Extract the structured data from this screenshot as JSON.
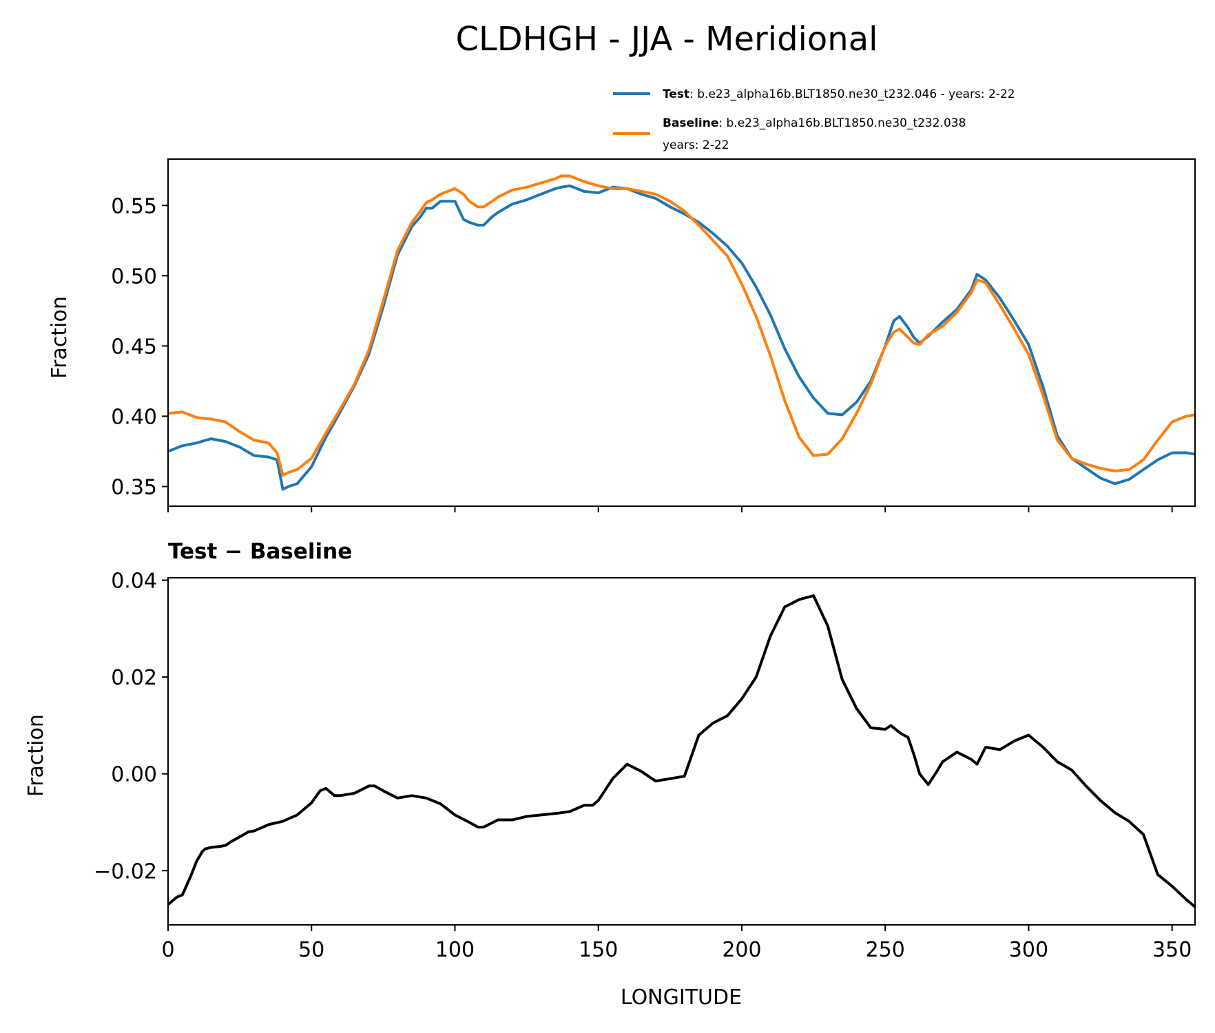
{
  "figure": {
    "title": "CLDHGH - JJA - Meridional"
  },
  "colors": {
    "test": "#1f77b4",
    "baseline": "#ff7f0e",
    "difference": "#000000",
    "axes": "#000000"
  },
  "legend": {
    "test_name": "Test",
    "test_desc": ": b.e23_alpha16b.BLT1850.ne30_t232.046 - years: 2-22",
    "baseline_name": "Baseline",
    "baseline_desc": ": b.e23_alpha16b.BLT1850.ne30_t232.038",
    "baseline_desc2": "years: 2-22"
  },
  "chart_data": [
    {
      "type": "line",
      "title": "",
      "xlabel": "",
      "ylabel": "Fraction",
      "xlim": [
        0,
        358
      ],
      "ylim": [
        0.336,
        0.583
      ],
      "yticks": [
        0.35,
        0.4,
        0.45,
        0.5,
        0.55
      ],
      "ytick_labels": [
        "0.35",
        "0.40",
        "0.45",
        "0.50",
        "0.55"
      ],
      "xticks": [
        0,
        50,
        100,
        150,
        200,
        250,
        300,
        350
      ],
      "legend": "top-right (above axes)",
      "series": [
        {
          "name": "Test",
          "x": [
            0,
            5,
            10,
            15,
            20,
            25,
            30,
            35,
            38,
            40,
            42,
            45,
            50,
            55,
            60,
            65,
            70,
            75,
            80,
            85,
            88,
            90,
            92,
            95,
            100,
            103,
            105,
            108,
            110,
            113,
            115,
            120,
            125,
            130,
            135,
            137,
            140,
            145,
            150,
            155,
            160,
            165,
            170,
            175,
            180,
            185,
            190,
            195,
            200,
            205,
            210,
            215,
            220,
            225,
            230,
            235,
            240,
            245,
            250,
            253,
            255,
            258,
            260,
            262,
            265,
            270,
            275,
            280,
            282,
            285,
            290,
            295,
            300,
            305,
            310,
            315,
            320,
            325,
            330,
            335,
            340,
            345,
            350,
            355,
            358
          ],
          "y": [
            0.375,
            0.379,
            0.381,
            0.384,
            0.382,
            0.378,
            0.372,
            0.371,
            0.369,
            0.348,
            0.35,
            0.352,
            0.364,
            0.385,
            0.403,
            0.422,
            0.444,
            0.478,
            0.515,
            0.535,
            0.542,
            0.548,
            0.548,
            0.553,
            0.553,
            0.54,
            0.538,
            0.536,
            0.536,
            0.542,
            0.545,
            0.551,
            0.554,
            0.558,
            0.562,
            0.563,
            0.564,
            0.56,
            0.559,
            0.563,
            0.562,
            0.558,
            0.555,
            0.549,
            0.544,
            0.538,
            0.53,
            0.521,
            0.509,
            0.492,
            0.472,
            0.448,
            0.428,
            0.413,
            0.402,
            0.401,
            0.41,
            0.425,
            0.45,
            0.468,
            0.471,
            0.463,
            0.456,
            0.452,
            0.457,
            0.467,
            0.476,
            0.49,
            0.501,
            0.497,
            0.484,
            0.468,
            0.451,
            0.421,
            0.386,
            0.37,
            0.363,
            0.356,
            0.352,
            0.355,
            0.362,
            0.369,
            0.374,
            0.374,
            0.373
          ]
        },
        {
          "name": "Baseline",
          "x": [
            0,
            5,
            10,
            15,
            20,
            25,
            30,
            35,
            38,
            40,
            42,
            45,
            50,
            55,
            60,
            65,
            70,
            75,
            80,
            85,
            88,
            90,
            92,
            95,
            100,
            103,
            105,
            108,
            110,
            113,
            115,
            120,
            125,
            130,
            135,
            137,
            140,
            145,
            150,
            155,
            160,
            165,
            170,
            175,
            180,
            185,
            190,
            195,
            200,
            205,
            210,
            215,
            220,
            225,
            230,
            235,
            240,
            245,
            250,
            253,
            255,
            258,
            260,
            262,
            265,
            270,
            275,
            280,
            282,
            285,
            290,
            295,
            300,
            305,
            310,
            315,
            320,
            325,
            330,
            335,
            340,
            345,
            350,
            355,
            358
          ],
          "y": [
            0.402,
            0.403,
            0.399,
            0.398,
            0.396,
            0.389,
            0.383,
            0.381,
            0.374,
            0.358,
            0.36,
            0.362,
            0.37,
            0.388,
            0.405,
            0.423,
            0.447,
            0.482,
            0.518,
            0.538,
            0.546,
            0.552,
            0.554,
            0.558,
            0.562,
            0.558,
            0.553,
            0.549,
            0.549,
            0.553,
            0.556,
            0.561,
            0.563,
            0.566,
            0.569,
            0.571,
            0.571,
            0.567,
            0.564,
            0.562,
            0.562,
            0.56,
            0.558,
            0.553,
            0.546,
            0.536,
            0.525,
            0.514,
            0.494,
            0.471,
            0.443,
            0.411,
            0.385,
            0.372,
            0.373,
            0.384,
            0.402,
            0.423,
            0.45,
            0.46,
            0.462,
            0.456,
            0.452,
            0.451,
            0.458,
            0.464,
            0.474,
            0.488,
            0.497,
            0.495,
            0.479,
            0.462,
            0.444,
            0.415,
            0.383,
            0.37,
            0.366,
            0.363,
            0.361,
            0.362,
            0.369,
            0.383,
            0.396,
            0.4,
            0.401
          ]
        }
      ]
    },
    {
      "type": "line",
      "title": "Test − Baseline",
      "xlabel": "LONGITUDE",
      "ylabel": "Fraction",
      "xlim": [
        0,
        358
      ],
      "ylim": [
        -0.0312,
        0.0405
      ],
      "yticks": [
        -0.02,
        0.0,
        0.02,
        0.04
      ],
      "ytick_labels": [
        "−0.02",
        "0.00",
        "0.02",
        "0.04"
      ],
      "xticks": [
        0,
        50,
        100,
        150,
        200,
        250,
        300,
        350
      ],
      "xtick_labels": [
        "0",
        "50",
        "100",
        "150",
        "200",
        "250",
        "300",
        "350"
      ],
      "series": [
        {
          "name": "Test − Baseline",
          "x": [
            0,
            3,
            5,
            8,
            10,
            12,
            13,
            15,
            18,
            20,
            22,
            25,
            28,
            30,
            35,
            40,
            45,
            50,
            53,
            55,
            58,
            60,
            65,
            70,
            72,
            75,
            80,
            85,
            90,
            95,
            100,
            105,
            108,
            110,
            115,
            120,
            125,
            130,
            135,
            140,
            145,
            148,
            150,
            155,
            160,
            165,
            170,
            175,
            180,
            185,
            190,
            195,
            200,
            205,
            210,
            215,
            220,
            225,
            230,
            235,
            240,
            245,
            250,
            252,
            255,
            258,
            260,
            262,
            265,
            268,
            270,
            275,
            280,
            282,
            285,
            290,
            295,
            300,
            305,
            310,
            315,
            320,
            325,
            330,
            335,
            340,
            345,
            350,
            355,
            358
          ],
          "y": [
            -0.027,
            -0.0255,
            -0.025,
            -0.021,
            -0.018,
            -0.016,
            -0.0155,
            -0.0152,
            -0.015,
            -0.0148,
            -0.014,
            -0.013,
            -0.012,
            -0.0118,
            -0.0105,
            -0.0098,
            -0.0085,
            -0.006,
            -0.0035,
            -0.003,
            -0.0045,
            -0.0045,
            -0.004,
            -0.0025,
            -0.0025,
            -0.0035,
            -0.005,
            -0.0045,
            -0.005,
            -0.0062,
            -0.0085,
            -0.01,
            -0.011,
            -0.011,
            -0.0095,
            -0.0095,
            -0.0088,
            -0.0085,
            -0.0082,
            -0.0078,
            -0.0065,
            -0.0065,
            -0.0055,
            -0.001,
            0.002,
            0.0005,
            -0.0015,
            -0.001,
            -0.0005,
            0.008,
            0.0105,
            0.012,
            0.0155,
            0.02,
            0.0285,
            0.0345,
            0.036,
            0.0368,
            0.0305,
            0.0195,
            0.0135,
            0.0095,
            0.0092,
            0.01,
            0.0085,
            0.0075,
            0.004,
            0.0,
            -0.0022,
            0.0005,
            0.0025,
            0.0045,
            0.003,
            0.002,
            0.0055,
            0.005,
            0.0068,
            0.008,
            0.0055,
            0.0025,
            0.0008,
            -0.0025,
            -0.0055,
            -0.008,
            -0.0098,
            -0.0125,
            -0.0208,
            -0.0232,
            -0.026,
            -0.0275
          ]
        }
      ]
    }
  ]
}
